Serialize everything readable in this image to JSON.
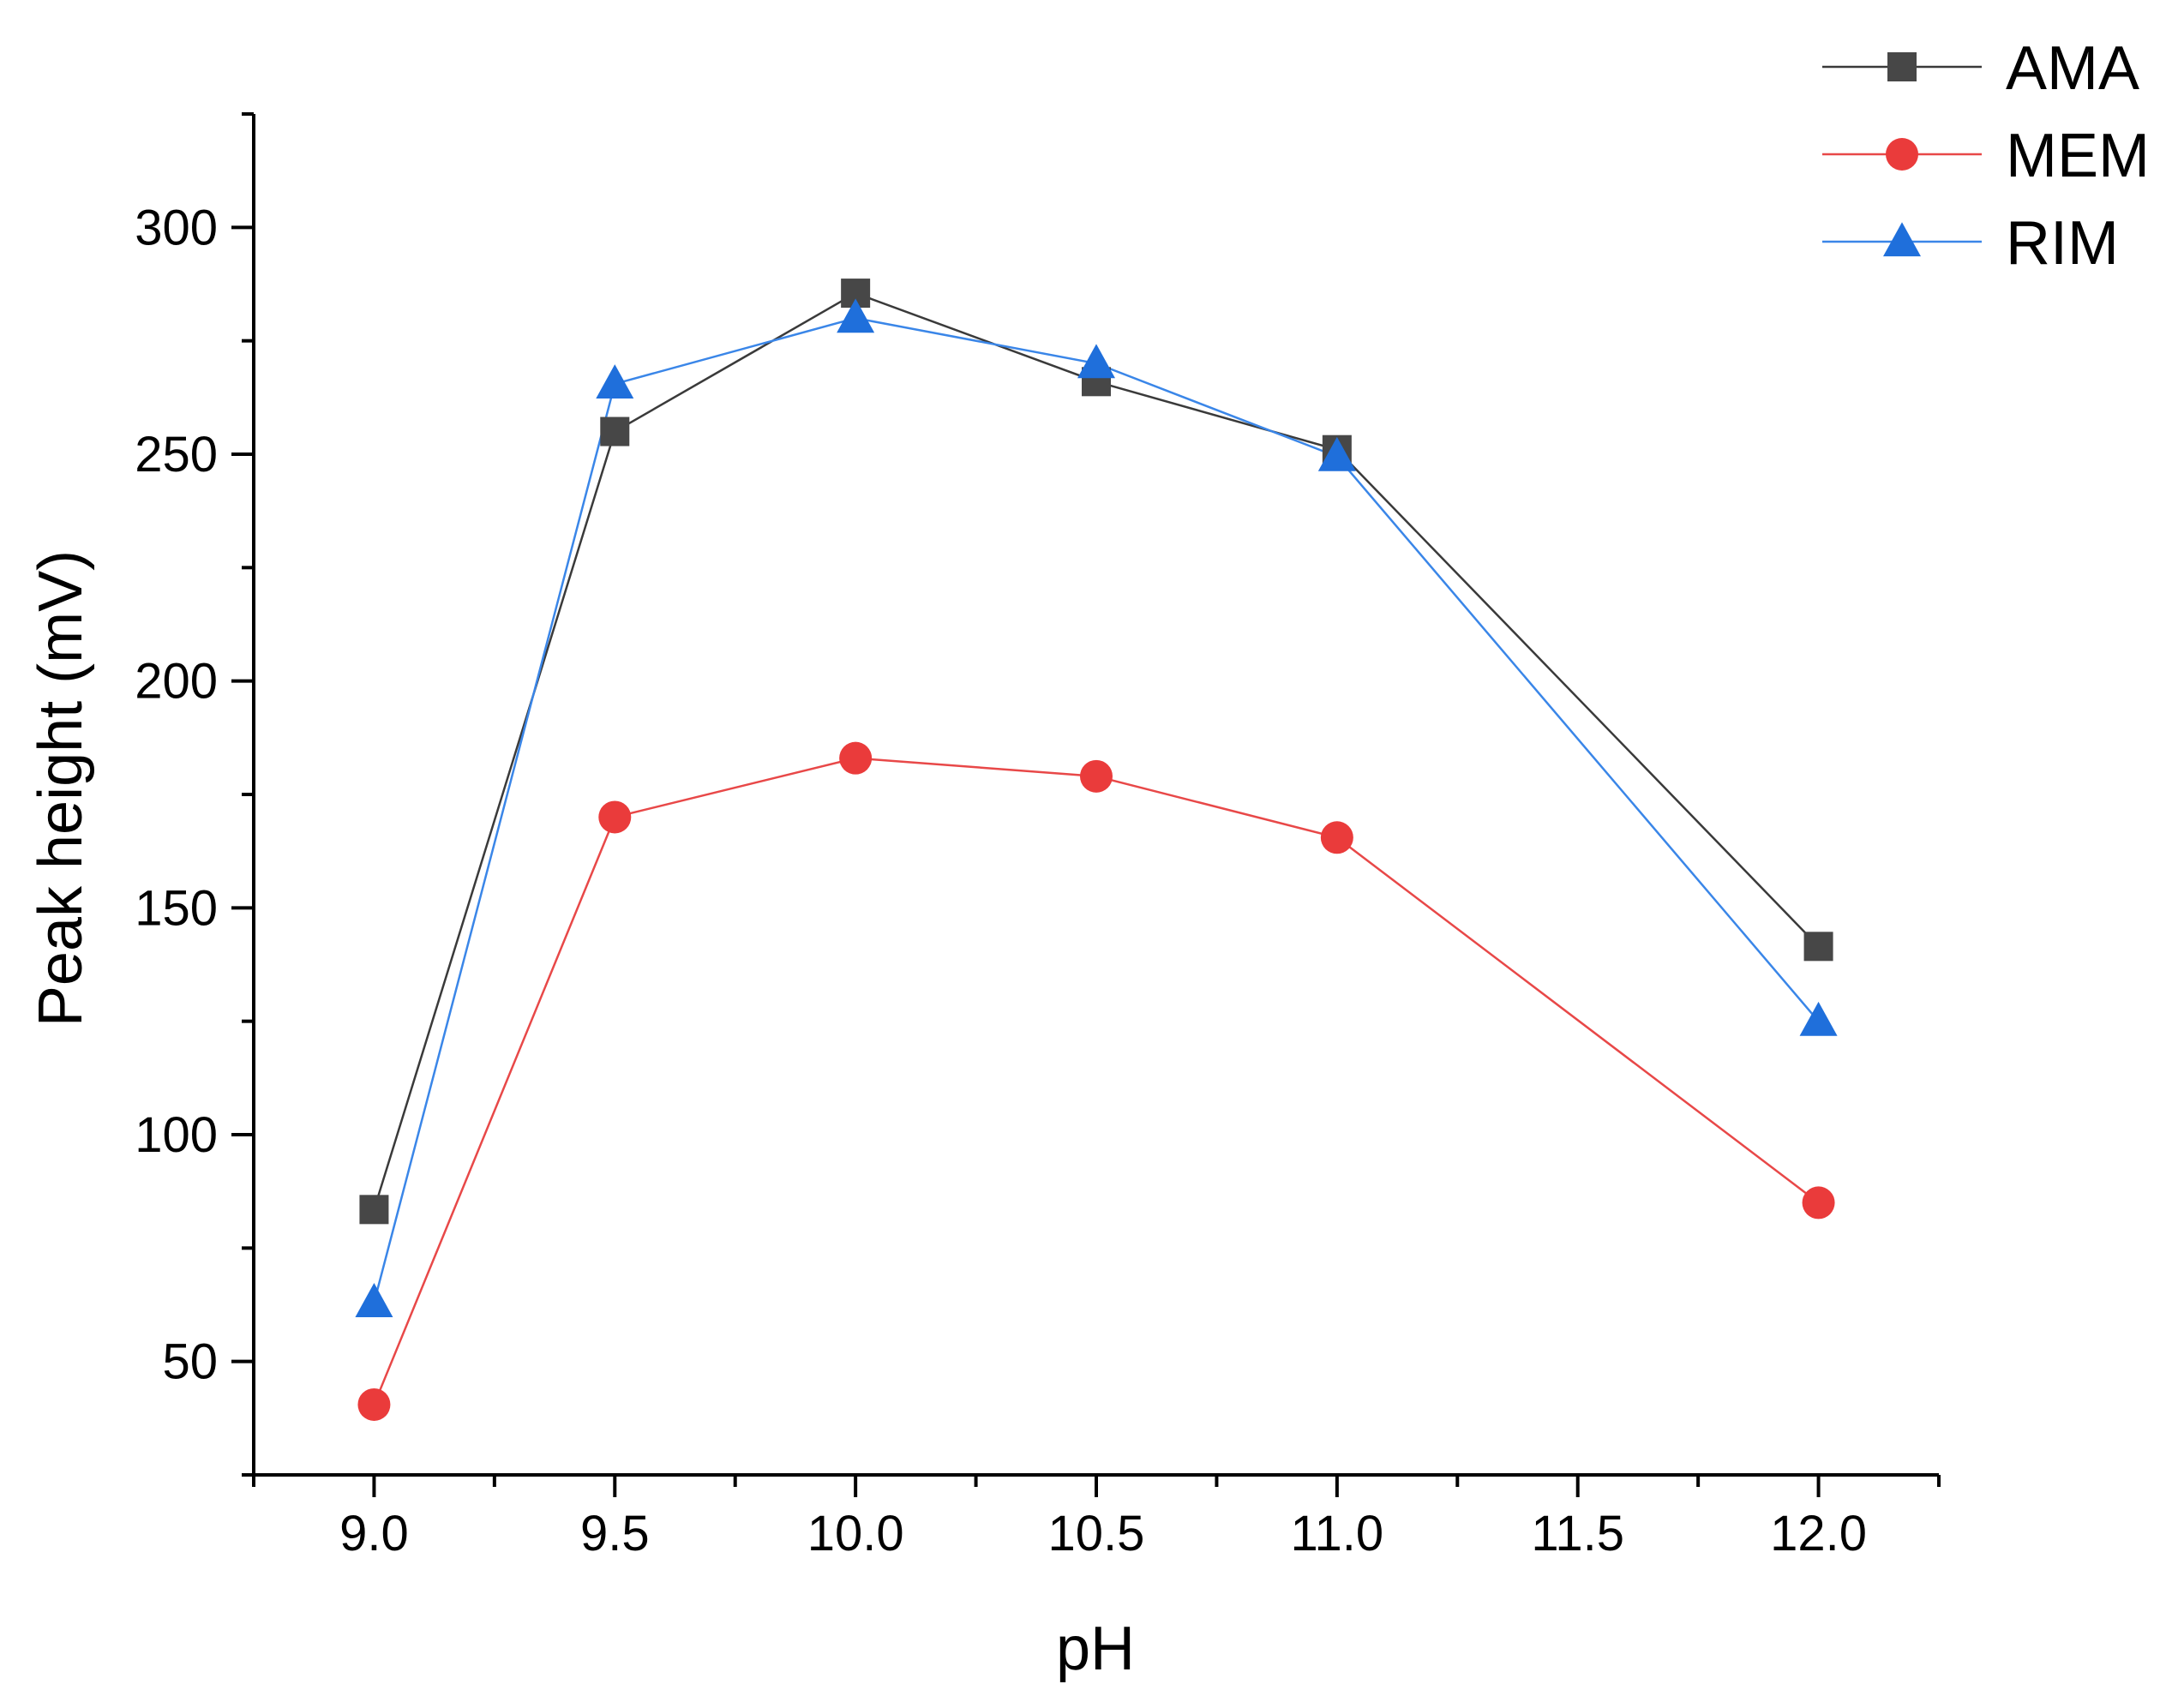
{
  "chart_data": {
    "type": "line",
    "title": "",
    "xlabel": "pH",
    "ylabel": "Peak height (mV)",
    "x": [
      9.0,
      9.5,
      10.0,
      10.5,
      11.0,
      12.0
    ],
    "xlim": [
      8.75,
      12.25
    ],
    "ylim": [
      25,
      325
    ],
    "xticks": [
      9.0,
      9.5,
      10.0,
      10.5,
      11.0,
      11.5,
      12.0
    ],
    "xtick_labels": [
      "9.0",
      "9.5",
      "10.0",
      "10.5",
      "11.0",
      "11.5",
      "12.0"
    ],
    "yticks": [
      50,
      100,
      150,
      200,
      250,
      300
    ],
    "ytick_labels": [
      "50",
      "100",
      "150",
      "200",
      "250",
      "300"
    ],
    "grid": false,
    "legend_position": "top-right",
    "series": [
      {
        "name": "AMA",
        "marker": "square",
        "color": "#474747",
        "line_color": "#3a3a3a",
        "values": [
          83.5,
          255,
          285.5,
          266,
          251,
          141.5
        ]
      },
      {
        "name": "MEM",
        "marker": "circle",
        "color": "#ea3b3b",
        "line_color": "#e84848",
        "values": [
          40.5,
          170,
          183,
          179,
          165.5,
          85
        ]
      },
      {
        "name": "RIM",
        "marker": "triangle",
        "color": "#1f6fdb",
        "line_color": "#3a86e8",
        "values": [
          63,
          265.5,
          280,
          270,
          249.5,
          125
        ]
      }
    ]
  }
}
